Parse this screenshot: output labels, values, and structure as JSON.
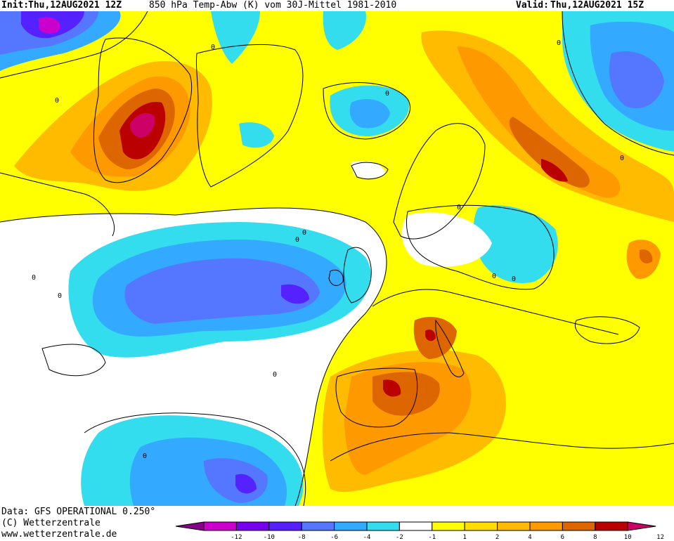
{
  "header": {
    "init_label": "Init:",
    "init_value": "Thu,12AUG2021  12Z",
    "title": "850 hPa Temp-Abw (K) vom 30J-Mittel 1981-2010",
    "valid_label": "Valid:",
    "valid_value": "Thu,12AUG2021  15Z"
  },
  "footer": {
    "data_line": "Data: GFS OPERATIONAL 0.250°",
    "copyright_line": "(C) Wetterzentrale",
    "url_line": "www.wetterzentrale.de"
  },
  "colorbar": {
    "ticks": [
      "-12",
      "-10",
      "-8",
      "-6",
      "-4",
      "-2",
      "-1",
      "1",
      "2",
      "4",
      "6",
      "8",
      "10",
      "12"
    ],
    "colors": [
      "#cc00cc",
      "#7700ee",
      "#5522ff",
      "#5577ff",
      "#33aaff",
      "#33ddee",
      "#ffffff",
      "#ffff00",
      "#ffdd00",
      "#ffbb00",
      "#ff9900",
      "#dd6600",
      "#bb0000"
    ],
    "low_arrow_color": "#880088",
    "high_arrow_color": "#cc0066"
  },
  "map": {
    "background_anomaly_color": "#ffff00",
    "contour_labels": [
      "0",
      "0",
      "0",
      "0",
      "0",
      "0",
      "0",
      "0",
      "0",
      "0",
      "0",
      "0",
      "0",
      "0"
    ]
  }
}
